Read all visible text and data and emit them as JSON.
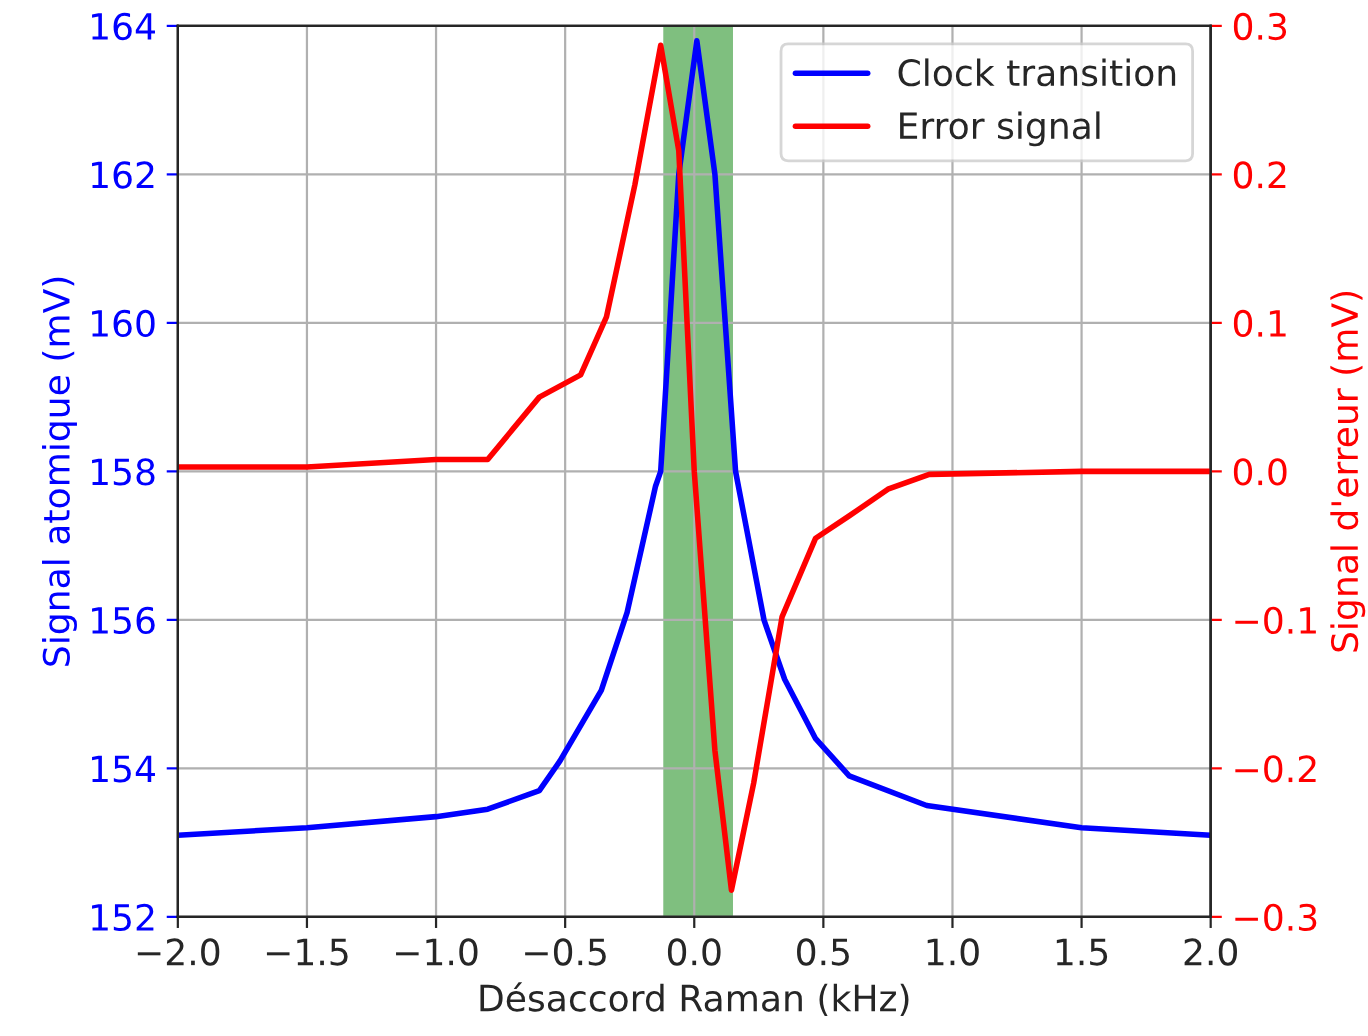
{
  "chart_data": {
    "type": "line",
    "xlabel": "Désaccord Raman (kHz)",
    "ylabel": "Signal atomique (mV)",
    "y2label": "Signal d'erreur (mV)",
    "xlim": [
      -2,
      2
    ],
    "xticks": [
      {
        "value": -2,
        "label": "−2.0"
      },
      {
        "value": -1.5,
        "label": "−1.5"
      },
      {
        "value": -1,
        "label": "−1.0"
      },
      {
        "value": -0.5,
        "label": "−0.5"
      },
      {
        "value": 0,
        "label": "0.0"
      },
      {
        "value": 0.5,
        "label": "0.5"
      },
      {
        "value": 1,
        "label": "1.0"
      },
      {
        "value": 1.5,
        "label": "1.5"
      },
      {
        "value": 2,
        "label": "2.0"
      }
    ],
    "ylim": [
      152,
      164
    ],
    "yticks": [
      152,
      154,
      156,
      158,
      160,
      162,
      164
    ],
    "y2lim": [
      -0.3,
      0.3
    ],
    "y2ticks": [
      {
        "value": -0.3,
        "label": "−0.3"
      },
      {
        "value": -0.2,
        "label": "−0.2"
      },
      {
        "value": -0.1,
        "label": "−0.1"
      },
      {
        "value": 0,
        "label": "0.0"
      },
      {
        "value": 0.1,
        "label": "0.1"
      },
      {
        "value": 0.2,
        "label": "0.2"
      },
      {
        "value": 0.3,
        "label": "0.3"
      }
    ],
    "grid": true,
    "legend": "top right",
    "bands": [
      {
        "axis": "x",
        "from": -0.12,
        "to": 0.15,
        "color": "#7fbf7f"
      }
    ],
    "series": [
      {
        "name": "Clock transition",
        "color": "#0000ff",
        "x": [
          -2,
          -1.5,
          -1.0,
          -0.8,
          -0.6,
          -0.52,
          -0.36,
          -0.26,
          -0.15,
          -0.13,
          -0.06,
          0.01,
          0.08,
          0.16,
          0.27,
          0.35,
          0.47,
          0.6,
          0.9,
          1.5,
          2
        ],
        "values": [
          153.1,
          153.2,
          153.35,
          153.45,
          153.7,
          154.1,
          155.05,
          156.1,
          157.8,
          158.0,
          162.0,
          163.8,
          162.0,
          158.0,
          156.0,
          155.2,
          154.4,
          153.9,
          153.5,
          153.2,
          153.1
        ]
      },
      {
        "name": "Error signal",
        "color": "#ff0000",
        "axis": "y2",
        "x": [
          -2,
          -1.5,
          -1.0,
          -0.8,
          -0.6,
          -0.44,
          -0.34,
          -0.23,
          -0.13,
          -0.06,
          0.0,
          0.08,
          0.144,
          0.23,
          0.34,
          0.47,
          0.6,
          0.75,
          0.91,
          1.5,
          2
        ],
        "values": [
          0.003,
          0.003,
          0.008,
          0.008,
          0.05,
          0.065,
          0.104,
          0.193,
          0.287,
          0.216,
          0.0,
          -0.188,
          -0.282,
          -0.21,
          -0.098,
          -0.045,
          -0.03,
          -0.012,
          -0.002,
          0.0,
          0.0
        ]
      }
    ]
  }
}
